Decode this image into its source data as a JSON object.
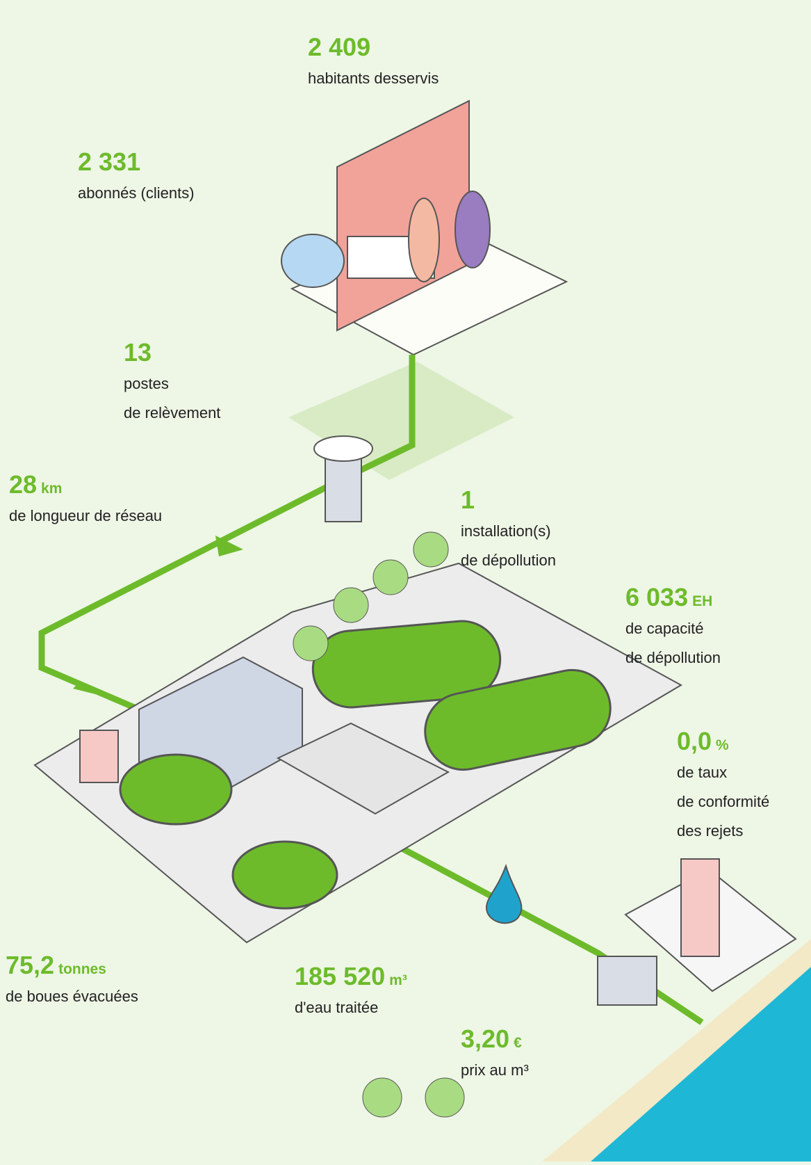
{
  "stats": [
    {
      "value": "2 409",
      "unit": null,
      "lines": [
        "habitants desservis"
      ]
    },
    {
      "value": "2 331",
      "unit": null,
      "lines": [
        "abonnés (clients)"
      ]
    },
    {
      "value": "13",
      "unit": null,
      "lines": [
        "postes",
        "de relèvement"
      ]
    },
    {
      "value": "28",
      "unit": "km",
      "lines": [
        "de longueur de réseau"
      ]
    },
    {
      "value": "1",
      "unit": null,
      "lines": [
        "installation(s)",
        "de dépollution"
      ]
    },
    {
      "value": "6 033",
      "unit": "EH",
      "lines": [
        "de capacité",
        "de dépollution"
      ]
    },
    {
      "value": "0,0",
      "unit": "%",
      "lines": [
        "de taux",
        "de conformité",
        "des rejets"
      ]
    },
    {
      "value": "75,2",
      "unit": "tonnes",
      "lines": [
        "de boues évacuées"
      ]
    },
    {
      "value": "185 520",
      "unit": "m³",
      "lines": [
        "d'eau traitée"
      ]
    },
    {
      "value": "3,20",
      "unit": "€",
      "lines": [
        "prix au m³"
      ]
    }
  ]
}
